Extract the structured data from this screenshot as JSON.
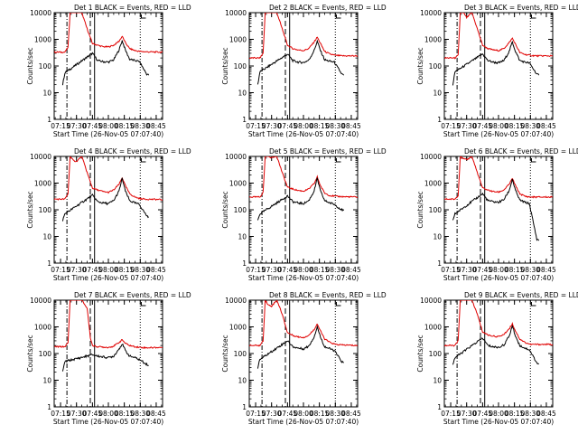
{
  "chart_data": {
    "type": "line",
    "layout": "3x3 grid",
    "y_scale": "log",
    "ylim": [
      1,
      10000
    ],
    "y_ticks": [
      "1",
      "10",
      "100",
      "1000",
      "10000"
    ],
    "ylabel": "Counts/sec",
    "xlim": [
      "07:09",
      "08:51"
    ],
    "x_ticks": [
      "07:15",
      "07:30",
      "07:45",
      "08:00",
      "08:15",
      "08:30",
      "08:45"
    ],
    "xlabel": "Start Time (26-Nov-05 07:07:40)",
    "legend_text": "BLACK = Events, RED = LLD",
    "series_colors": {
      "events": "#000000",
      "lld": "#e00000"
    },
    "vertical_markers": [
      {
        "time": "07:21",
        "style": "dash-dot"
      },
      {
        "time": "07:43",
        "style": "dashed"
      },
      {
        "time": "07:47",
        "style": "solid"
      },
      {
        "time": "08:30",
        "style": "dotted"
      }
    ],
    "panels": [
      {
        "label": "Det 1",
        "lld_times": [
          "07:09",
          "07:19",
          "07:22",
          "07:24",
          "07:27",
          "07:30",
          "07:35",
          "07:40",
          "07:45",
          "07:50",
          "07:55",
          "08:00",
          "08:05",
          "08:10",
          "08:13",
          "08:16",
          "08:20",
          "08:25",
          "08:30",
          "08:36",
          "08:51"
        ],
        "lld_values": [
          330,
          330,
          500,
          10000,
          10000,
          10000,
          10000,
          2500,
          700,
          600,
          530,
          520,
          600,
          850,
          1300,
          750,
          450,
          380,
          350,
          340,
          330
        ],
        "event_times": [
          "07:17",
          "07:19",
          "07:45",
          "07:50",
          "07:55",
          "08:00",
          "08:05",
          "08:10",
          "08:13",
          "08:16",
          "08:20",
          "08:25",
          "08:29",
          "08:36",
          "08:38"
        ],
        "event_values": [
          20,
          55,
          300,
          160,
          145,
          140,
          170,
          400,
          900,
          400,
          180,
          160,
          150,
          50,
          45
        ]
      },
      {
        "label": "Det 2",
        "lld_times": [
          "07:09",
          "07:19",
          "07:22",
          "07:24",
          "07:27",
          "07:30",
          "07:35",
          "07:40",
          "07:45",
          "07:50",
          "07:55",
          "08:00",
          "08:05",
          "08:10",
          "08:13",
          "08:16",
          "08:20",
          "08:25",
          "08:30",
          "08:36",
          "08:51"
        ],
        "lld_values": [
          200,
          200,
          300,
          10000,
          10000,
          10000,
          10000,
          2500,
          600,
          450,
          400,
          380,
          450,
          800,
          1200,
          700,
          350,
          280,
          250,
          240,
          240
        ],
        "event_times": [
          "07:17",
          "07:19",
          "07:45",
          "07:50",
          "07:55",
          "08:00",
          "08:05",
          "08:10",
          "08:13",
          "08:16",
          "08:20",
          "08:25",
          "08:29",
          "08:36",
          "08:38"
        ],
        "event_values": [
          20,
          60,
          280,
          160,
          140,
          135,
          165,
          380,
          850,
          380,
          170,
          150,
          140,
          50,
          45
        ]
      },
      {
        "label": "Det 3",
        "lld_times": [
          "07:09",
          "07:19",
          "07:22",
          "07:24",
          "07:27",
          "07:30",
          "07:35",
          "07:40",
          "07:45",
          "07:50",
          "07:55",
          "08:00",
          "08:05",
          "08:10",
          "08:13",
          "08:16",
          "08:20",
          "08:25",
          "08:30",
          "08:36",
          "08:51"
        ],
        "lld_values": [
          200,
          200,
          250,
          10000,
          10000,
          6500,
          10000,
          2500,
          600,
          450,
          400,
          380,
          450,
          750,
          1100,
          650,
          320,
          270,
          250,
          240,
          240
        ],
        "event_times": [
          "07:17",
          "07:19",
          "07:45",
          "07:50",
          "07:55",
          "08:00",
          "08:05",
          "08:10",
          "08:13",
          "08:16",
          "08:20",
          "08:25",
          "08:29",
          "08:36",
          "08:38"
        ],
        "event_values": [
          20,
          60,
          280,
          160,
          140,
          130,
          160,
          350,
          800,
          350,
          160,
          140,
          130,
          50,
          45
        ]
      },
      {
        "label": "Det 4",
        "lld_times": [
          "07:09",
          "07:19",
          "07:22",
          "07:24",
          "07:27",
          "07:30",
          "07:35",
          "07:40",
          "07:45",
          "07:50",
          "07:55",
          "08:00",
          "08:05",
          "08:10",
          "08:13",
          "08:16",
          "08:20",
          "08:25",
          "08:30",
          "08:36",
          "08:51"
        ],
        "lld_values": [
          250,
          250,
          400,
          10000,
          7000,
          6500,
          10000,
          2500,
          650,
          550,
          480,
          450,
          550,
          900,
          1600,
          800,
          400,
          300,
          260,
          250,
          240
        ],
        "event_times": [
          "07:17",
          "07:19",
          "07:45",
          "07:50",
          "07:55",
          "08:00",
          "08:05",
          "08:10",
          "08:13",
          "08:16",
          "08:20",
          "08:25",
          "08:29",
          "08:36",
          "08:38"
        ],
        "event_values": [
          40,
          70,
          350,
          200,
          180,
          170,
          220,
          500,
          1500,
          500,
          220,
          180,
          160,
          60,
          55
        ]
      },
      {
        "label": "Det 5",
        "lld_times": [
          "07:09",
          "07:19",
          "07:22",
          "07:24",
          "07:27",
          "07:30",
          "07:35",
          "07:40",
          "07:45",
          "07:50",
          "07:55",
          "08:00",
          "08:05",
          "08:10",
          "08:13",
          "08:16",
          "08:20",
          "08:25",
          "08:30",
          "08:36",
          "08:51"
        ],
        "lld_values": [
          300,
          300,
          450,
          10000,
          10000,
          9000,
          10000,
          2500,
          700,
          600,
          530,
          500,
          600,
          950,
          1700,
          800,
          420,
          340,
          320,
          310,
          300
        ],
        "event_times": [
          "07:17",
          "07:19",
          "07:45",
          "07:50",
          "07:55",
          "08:00",
          "08:05",
          "08:10",
          "08:13",
          "08:16",
          "08:20",
          "08:25",
          "08:29",
          "08:36",
          "08:38"
        ],
        "event_values": [
          40,
          70,
          330,
          200,
          180,
          170,
          220,
          500,
          1500,
          500,
          220,
          180,
          160,
          100,
          95
        ]
      },
      {
        "label": "Det 6",
        "lld_times": [
          "07:09",
          "07:19",
          "07:22",
          "07:24",
          "07:27",
          "07:30",
          "07:35",
          "07:40",
          "07:45",
          "07:50",
          "07:55",
          "08:00",
          "08:05",
          "08:10",
          "08:13",
          "08:16",
          "08:20",
          "08:25",
          "08:30",
          "08:36",
          "08:51"
        ],
        "lld_values": [
          250,
          250,
          350,
          10000,
          8000,
          7500,
          10000,
          2500,
          650,
          550,
          480,
          460,
          550,
          900,
          1500,
          800,
          400,
          320,
          300,
          300,
          300
        ],
        "event_times": [
          "07:17",
          "07:19",
          "07:45",
          "07:50",
          "07:55",
          "08:00",
          "08:05",
          "08:10",
          "08:13",
          "08:16",
          "08:20",
          "08:25",
          "08:29",
          "08:36",
          "08:38"
        ],
        "event_values": [
          40,
          70,
          400,
          220,
          200,
          190,
          240,
          520,
          1400,
          520,
          230,
          190,
          170,
          8,
          7
        ]
      },
      {
        "label": "Det 7",
        "lld_times": [
          "07:09",
          "07:19",
          "07:22",
          "07:24",
          "07:27",
          "07:30",
          "07:35",
          "07:40",
          "07:43",
          "07:45",
          "07:50",
          "07:55",
          "08:00",
          "08:05",
          "08:10",
          "08:13",
          "08:16",
          "08:20",
          "08:25",
          "08:30",
          "08:36",
          "08:51"
        ],
        "lld_values": [
          180,
          180,
          250,
          10000,
          10000,
          10000,
          10000,
          5000,
          400,
          200,
          180,
          175,
          170,
          190,
          260,
          330,
          240,
          200,
          180,
          170,
          165,
          170
        ],
        "event_times": [
          "07:17",
          "07:19",
          "07:45",
          "07:50",
          "07:55",
          "08:00",
          "08:05",
          "08:10",
          "08:13",
          "08:16",
          "08:20",
          "08:25",
          "08:29",
          "08:36",
          "08:38"
        ],
        "event_values": [
          20,
          50,
          90,
          80,
          75,
          70,
          80,
          150,
          230,
          130,
          80,
          70,
          60,
          40,
          35
        ]
      },
      {
        "label": "Det 8",
        "lld_times": [
          "07:09",
          "07:19",
          "07:22",
          "07:24",
          "07:27",
          "07:30",
          "07:35",
          "07:40",
          "07:45",
          "07:50",
          "07:55",
          "08:00",
          "08:05",
          "08:10",
          "08:13",
          "08:16",
          "08:20",
          "08:25",
          "08:30",
          "08:36",
          "08:51"
        ],
        "lld_values": [
          200,
          200,
          300,
          10000,
          6500,
          6000,
          10000,
          3000,
          600,
          480,
          420,
          400,
          480,
          800,
          1300,
          700,
          350,
          260,
          220,
          210,
          200
        ],
        "event_times": [
          "07:17",
          "07:19",
          "07:45",
          "07:50",
          "07:55",
          "08:00",
          "08:05",
          "08:10",
          "08:13",
          "08:16",
          "08:20",
          "08:25",
          "08:29",
          "08:36",
          "08:38"
        ],
        "event_values": [
          30,
          60,
          300,
          180,
          160,
          150,
          190,
          420,
          1000,
          420,
          180,
          150,
          130,
          50,
          45
        ]
      },
      {
        "label": "Det 9",
        "lld_times": [
          "07:09",
          "07:19",
          "07:22",
          "07:24",
          "07:27",
          "07:30",
          "07:35",
          "07:40",
          "07:45",
          "07:50",
          "07:55",
          "08:00",
          "08:05",
          "08:10",
          "08:13",
          "08:16",
          "08:20",
          "08:25",
          "08:30",
          "08:36",
          "08:51"
        ],
        "lld_values": [
          200,
          200,
          300,
          10000,
          10000,
          10000,
          10000,
          3000,
          650,
          500,
          450,
          430,
          520,
          850,
          1300,
          700,
          350,
          260,
          220,
          220,
          220
        ],
        "event_times": [
          "07:17",
          "07:19",
          "07:45",
          "07:50",
          "07:55",
          "08:00",
          "08:05",
          "08:10",
          "08:13",
          "08:16",
          "08:20",
          "08:25",
          "08:29",
          "08:36",
          "08:38"
        ],
        "event_values": [
          40,
          70,
          380,
          200,
          180,
          170,
          210,
          450,
          1100,
          450,
          200,
          160,
          140,
          45,
          40
        ]
      }
    ]
  }
}
